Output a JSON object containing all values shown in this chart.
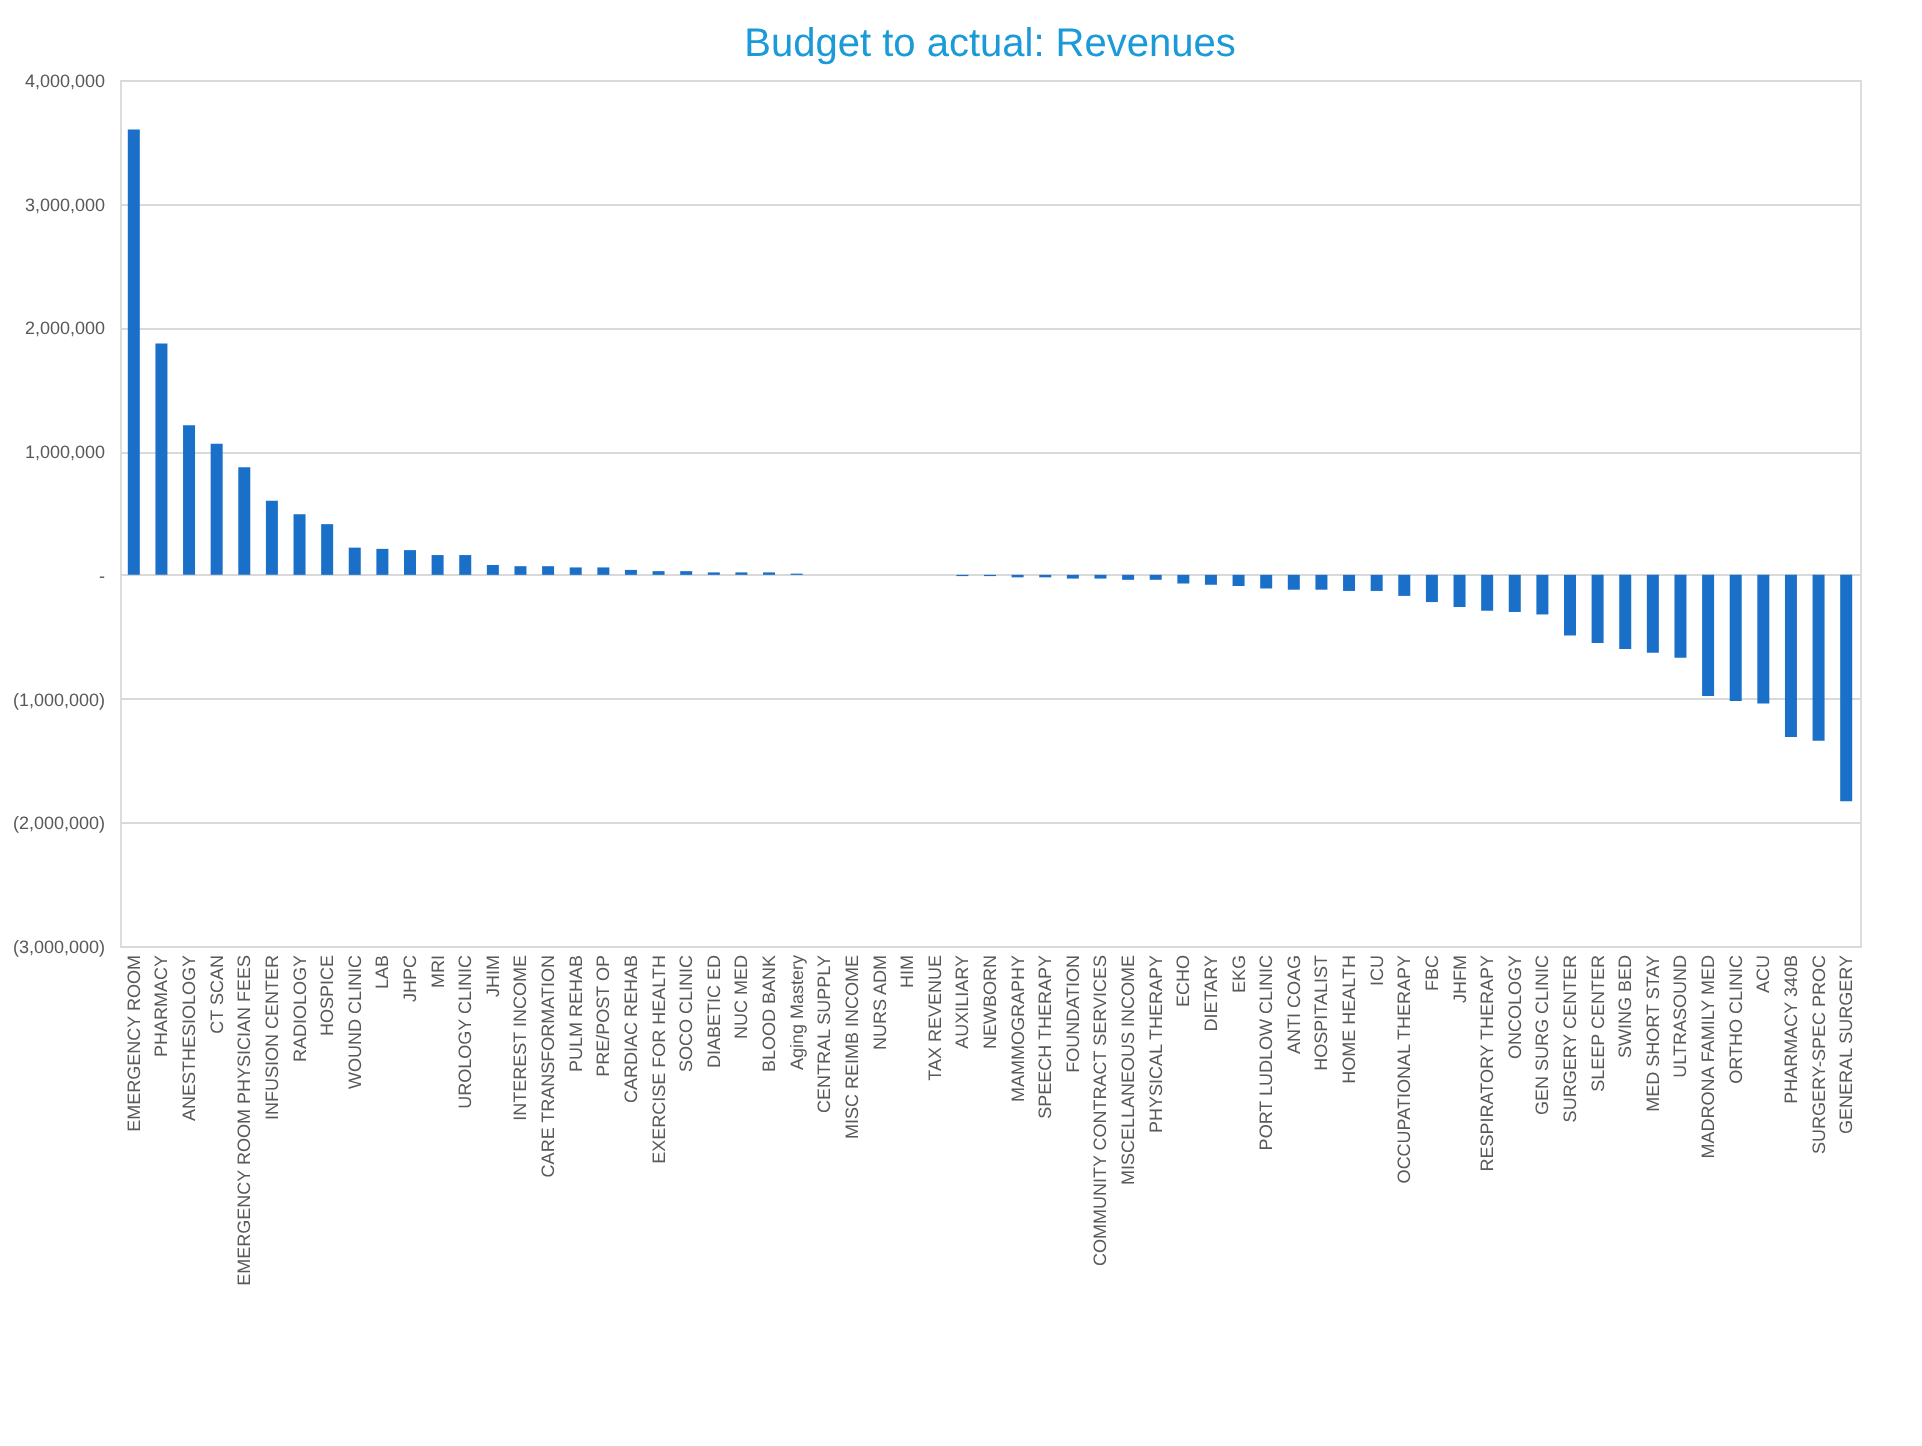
{
  "chart_data": {
    "type": "bar",
    "title": "Budget to actual: Revenues",
    "categories": [
      "EMERGENCY ROOM",
      "PHARMACY",
      "ANESTHESIOLOGY",
      "CT SCAN",
      "EMERGENCY ROOM PHYSICIAN FEES",
      "INFUSION CENTER",
      "RADIOLOGY",
      "HOSPICE",
      "WOUND CLINIC",
      "LAB",
      "JHPC",
      "MRI",
      "UROLOGY CLINIC",
      "JHIM",
      "INTEREST INCOME",
      "CARE TRANSFORMATION",
      "PULM REHAB",
      "PRE/POST OP",
      "CARDIAC REHAB",
      "EXERCISE FOR HEALTH",
      "SOCO CLINIC",
      "DIABETIC ED",
      "NUC MED",
      "BLOOD BANK",
      "Aging Mastery",
      "CENTRAL SUPPLY",
      "MISC REIMB INCOME",
      "NURS ADM",
      "HIM",
      "TAX REVENUE",
      "AUXILIARY",
      "NEWBORN",
      "MAMMOGRAPHY",
      "SPEECH THERAPY",
      "FOUNDATION",
      "COMMUNITY CONTRACT SERVICES",
      "MISCELLANEOUS INCOME",
      "PHYSICAL THERAPY",
      "ECHO",
      "DIETARY",
      "EKG",
      "PORT LUDLOW CLINIC",
      "ANTI COAG",
      "HOSPITALIST",
      "HOME HEALTH",
      "ICU",
      "OCCUPATIONAL THERAPY",
      "FBC",
      "JHFM",
      "RESPIRATORY THERAPY",
      "ONCOLOGY",
      "GEN SURG CLINIC",
      "SURGERY CENTER",
      "SLEEP CENTER",
      "SWING BED",
      "MED SHORT STAY",
      "ULTRASOUND",
      "MADRONA FAMILY MED",
      "ORTHO CLINIC",
      "ACU",
      "PHARMACY 340B",
      "SURGERY-SPEC PROC",
      "GENERAL SURGERY"
    ],
    "values": [
      3600000,
      1870000,
      1210000,
      1060000,
      870000,
      600000,
      490000,
      410000,
      220000,
      210000,
      200000,
      160000,
      160000,
      80000,
      70000,
      70000,
      60000,
      60000,
      40000,
      30000,
      30000,
      20000,
      20000,
      20000,
      10000,
      null,
      0,
      0,
      0,
      null,
      -10000,
      -10000,
      -20000,
      -20000,
      -30000,
      -30000,
      -40000,
      -40000,
      -70000,
      -80000,
      -90000,
      -110000,
      -120000,
      -120000,
      -130000,
      -130000,
      -170000,
      -220000,
      -260000,
      -290000,
      -300000,
      -320000,
      -490000,
      -550000,
      -600000,
      -630000,
      -670000,
      -980000,
      -1020000,
      -1040000,
      -1310000,
      -1340000,
      -1830000
    ],
    "color": "#1a70c8",
    "ylim": [
      -3000000,
      4000000
    ],
    "yticks": [
      {
        "value": -3000000,
        "label": "(3,000,000)"
      },
      {
        "value": -2000000,
        "label": "(2,000,000)"
      },
      {
        "value": -1000000,
        "label": "(1,000,000)"
      },
      {
        "value": 0,
        "label": "-"
      },
      {
        "value": 1000000,
        "label": "1,000,000"
      },
      {
        "value": 2000000,
        "label": "2,000,000"
      },
      {
        "value": 3000000,
        "label": "3,000,000"
      },
      {
        "value": 4000000,
        "label": "4,000,000"
      }
    ],
    "grid": "y"
  }
}
